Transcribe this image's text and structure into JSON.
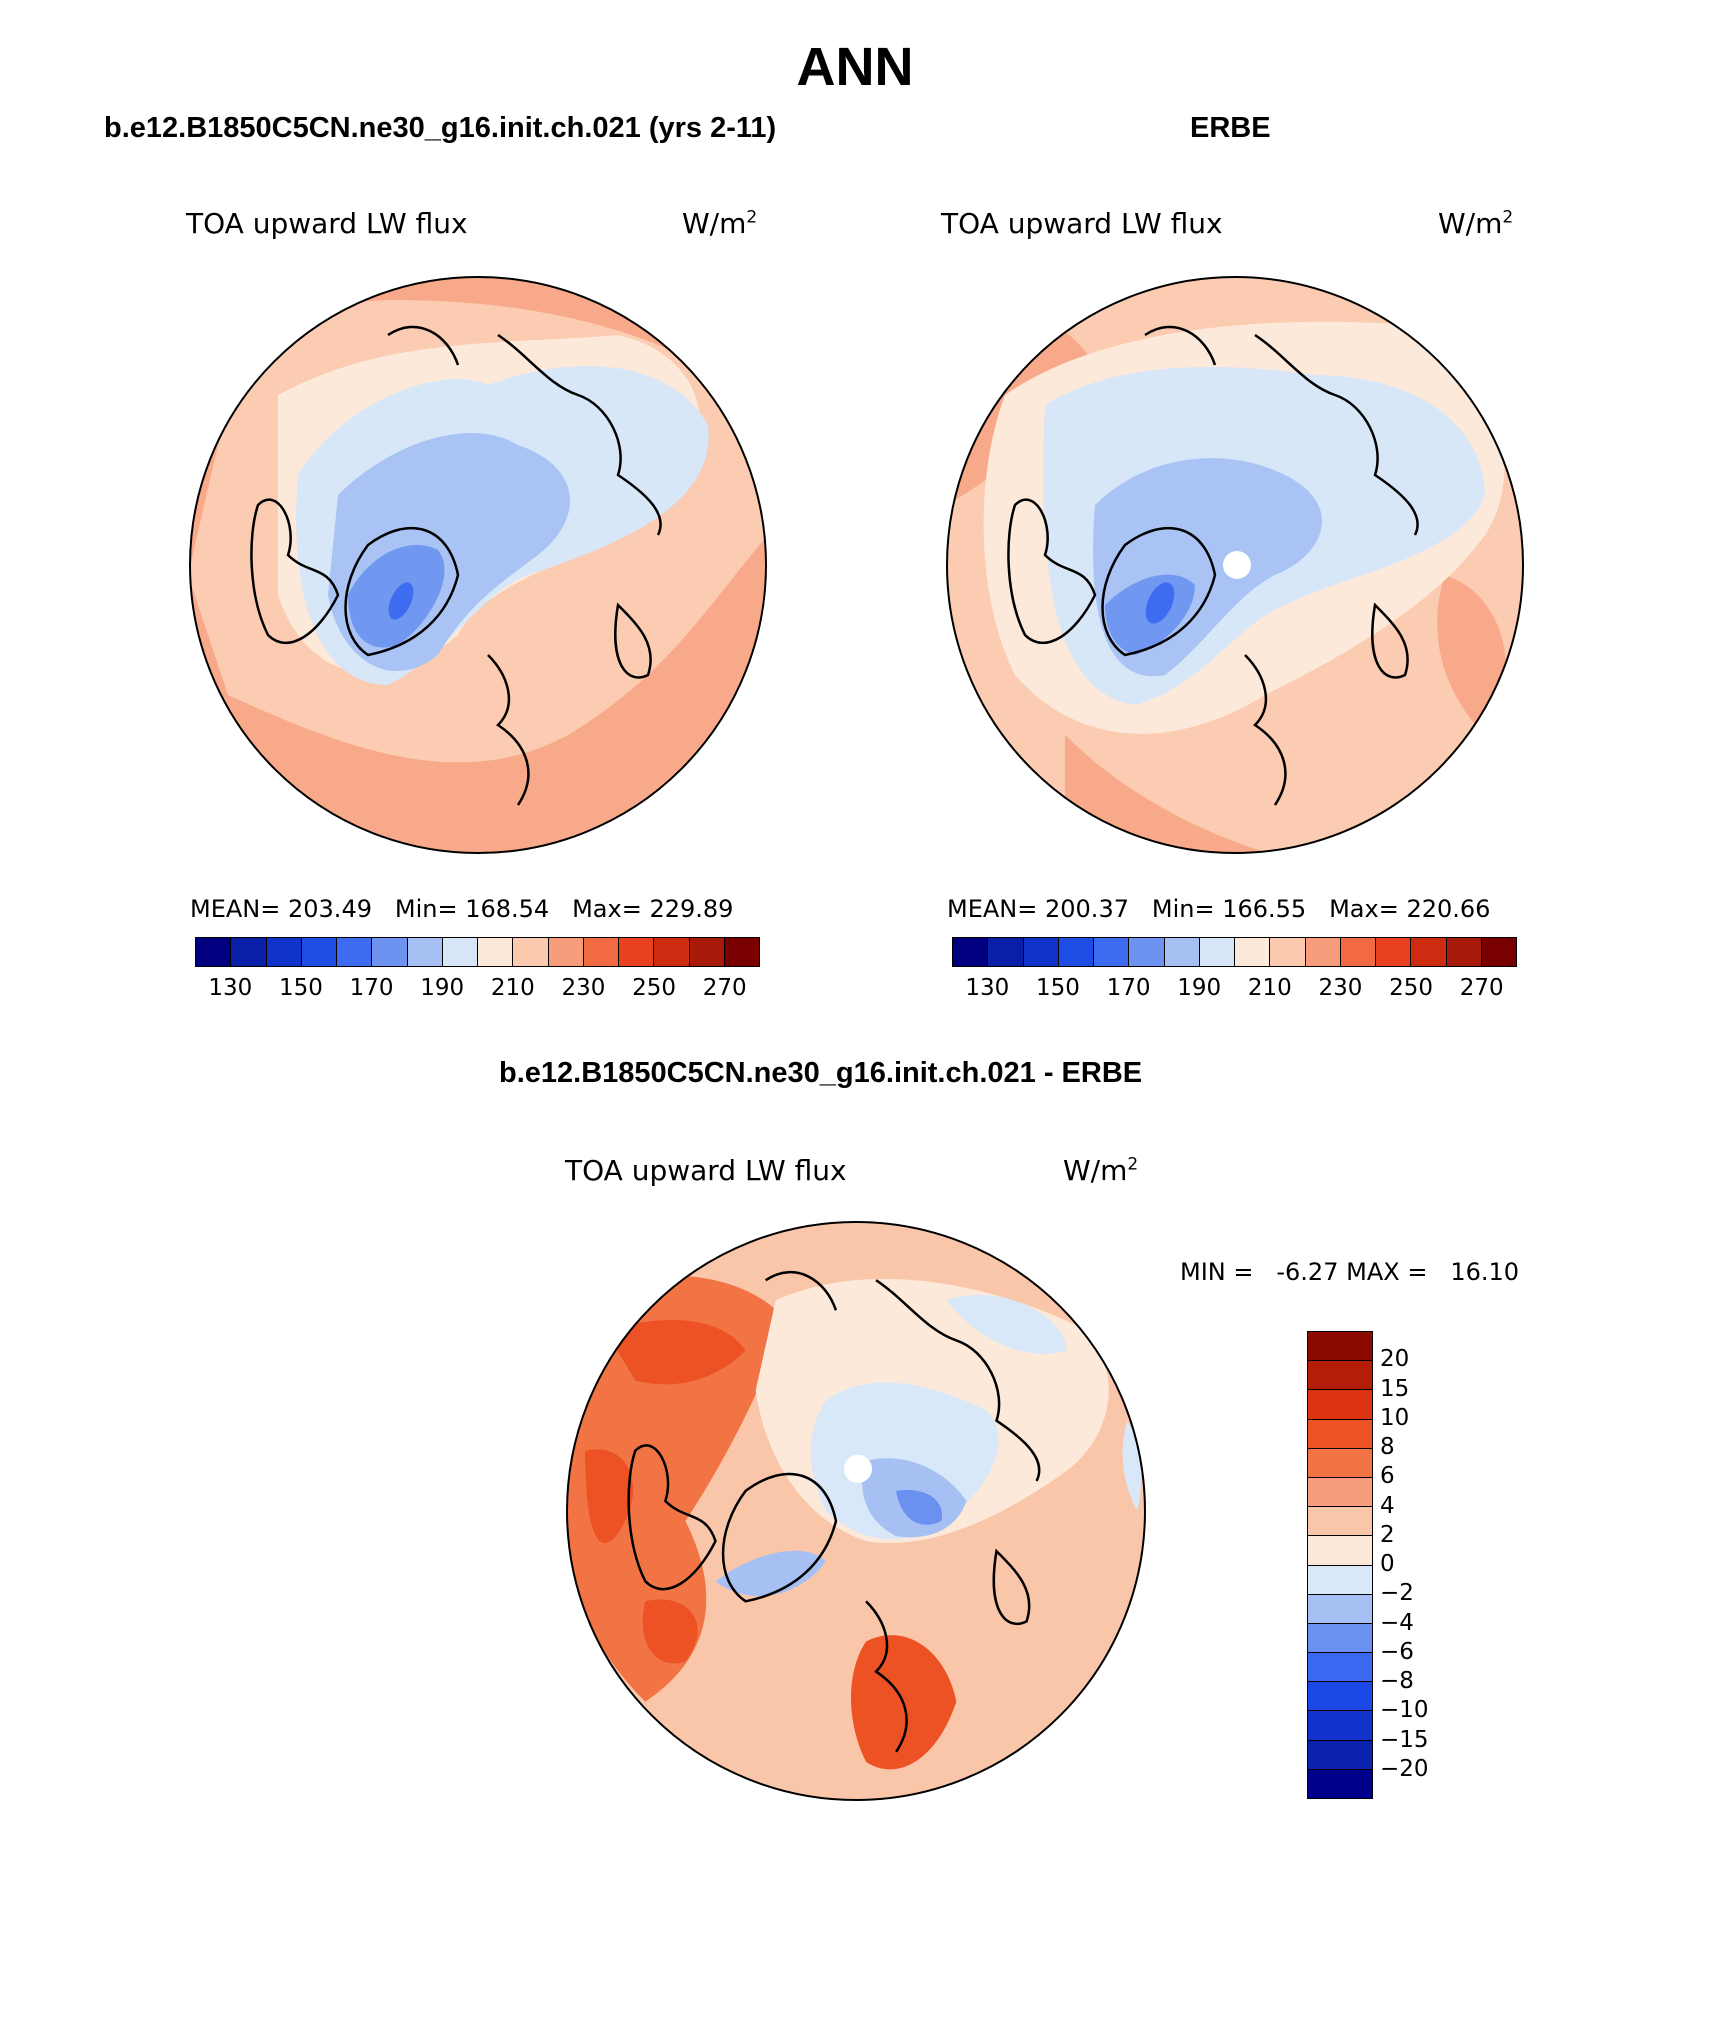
{
  "page_title": "ANN",
  "panels": [
    {
      "case_title": "b.e12.B1850C5CN.ne30_g16.init.ch.021 (yrs 2-11)",
      "variable": "TOA upward LW flux",
      "units": "W/m",
      "units_exp": "2",
      "stats": {
        "mean_label": "MEAN=",
        "mean": "203.49",
        "min_label": "Min=",
        "min": "168.54",
        "max_label": "Max=",
        "max": "229.89"
      }
    },
    {
      "case_title": "ERBE",
      "variable": "TOA upward LW flux",
      "units": "W/m",
      "units_exp": "2",
      "stats": {
        "mean_label": "MEAN=",
        "mean": "200.37",
        "min_label": "Min=",
        "min": "166.55",
        "max_label": "Max=",
        "max": "220.66"
      }
    },
    {
      "case_title": "b.e12.B1850C5CN.ne30_g16.init.ch.021 - ERBE",
      "variable": "TOA upward LW flux",
      "units": "W/m",
      "units_exp": "2",
      "stats": {
        "min_label": "MIN =",
        "min": "-6.27",
        "max_label": "MAX =",
        "max": "16.10"
      }
    }
  ],
  "colorbar_abs": {
    "colors": [
      "#000080",
      "#0a1fa8",
      "#1034c8",
      "#1e4ee6",
      "#3d6cf0",
      "#6e92f0",
      "#a6c0f4",
      "#d6e6f8",
      "#fde9da",
      "#fbc9ae",
      "#f79d7b",
      "#f26a42",
      "#e8431e",
      "#cd2c10",
      "#a81a0a",
      "#7a0000"
    ],
    "tick_labels": [
      "130",
      "150",
      "170",
      "190",
      "210",
      "230",
      "250",
      "270"
    ]
  },
  "colorbar_diff": {
    "colors": [
      "#00008c",
      "#0a22ad",
      "#1133cc",
      "#1c48e6",
      "#3a68f0",
      "#6a90f0",
      "#a6c0f4",
      "#d8e8f8",
      "#fde9da",
      "#fac6aa",
      "#f79d7b",
      "#f27444",
      "#ec5224",
      "#dc3410",
      "#b51e06",
      "#8c0a00"
    ],
    "tick_labels": [
      "20",
      "15",
      "10",
      "8",
      "6",
      "4",
      "2",
      "0",
      "−2",
      "−4",
      "−6",
      "−8",
      "−10",
      "−15",
      "−20"
    ]
  },
  "chart_data": [
    {
      "type": "heatmap",
      "projection": "north polar stereographic",
      "title": "b.e12.B1850C5CN.ne30_g16.init.ch.021 (yrs 2-11)",
      "variable": "TOA upward LW flux",
      "units": "W/m^2",
      "mean": 203.49,
      "min": 168.54,
      "max": 229.89,
      "contour_levels": [
        130,
        140,
        150,
        160,
        170,
        180,
        190,
        200,
        210,
        220,
        230,
        240,
        250,
        260,
        270
      ]
    },
    {
      "type": "heatmap",
      "projection": "north polar stereographic",
      "title": "ERBE",
      "variable": "TOA upward LW flux",
      "units": "W/m^2",
      "mean": 200.37,
      "min": 166.55,
      "max": 220.66,
      "contour_levels": [
        130,
        140,
        150,
        160,
        170,
        180,
        190,
        200,
        210,
        220,
        230,
        240,
        250,
        260,
        270
      ]
    },
    {
      "type": "heatmap",
      "projection": "north polar stereographic",
      "title": "b.e12.B1850C5CN.ne30_g16.init.ch.021 - ERBE",
      "variable": "TOA upward LW flux",
      "units": "W/m^2",
      "min": -6.27,
      "max": 16.1,
      "contour_levels": [
        -20,
        -15,
        -10,
        -8,
        -6,
        -4,
        -2,
        0,
        2,
        4,
        6,
        8,
        10,
        15,
        20
      ]
    }
  ]
}
